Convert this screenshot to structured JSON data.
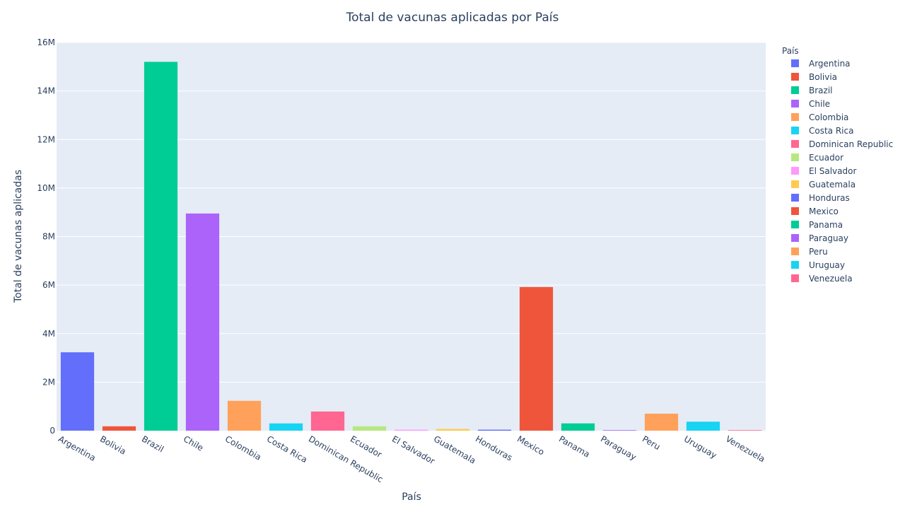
{
  "chart_data": {
    "type": "bar",
    "title": "Total de vacunas aplicadas por País",
    "xlabel": "País",
    "ylabel": "Total de vacunas aplicadas",
    "legend_title": "País",
    "legend_position": "right",
    "grid": true,
    "ylim": [
      0,
      16000000
    ],
    "y_ticks": [
      0,
      2000000,
      4000000,
      6000000,
      8000000,
      10000000,
      12000000,
      14000000,
      16000000
    ],
    "y_tick_labels": [
      "0",
      "2M",
      "4M",
      "6M",
      "8M",
      "10M",
      "12M",
      "14M",
      "16M"
    ],
    "categories": [
      "Argentina",
      "Bolivia",
      "Brazil",
      "Chile",
      "Colombia",
      "Costa Rica",
      "Dominican Republic",
      "Ecuador",
      "El Salvador",
      "Guatemala",
      "Honduras",
      "Mexico",
      "Panama",
      "Paraguay",
      "Peru",
      "Uruguay",
      "Venezuela"
    ],
    "values": [
      3230000,
      180000,
      15200000,
      8950000,
      1230000,
      300000,
      790000,
      180000,
      40000,
      70000,
      40000,
      5920000,
      300000,
      10000,
      700000,
      370000,
      10000
    ],
    "colors": [
      "#636efa",
      "#EF553B",
      "#00cc96",
      "#ab63fa",
      "#FFA15A",
      "#19d3f3",
      "#FF6692",
      "#B6E880",
      "#FF97FF",
      "#FECB52",
      "#636efa",
      "#EF553B",
      "#00cc96",
      "#ab63fa",
      "#FFA15A",
      "#19d3f3",
      "#FF6692"
    ],
    "plot_background": "#E5ECF6",
    "gridline_color": "#ffffff",
    "text_color": "#2a3f5f"
  }
}
